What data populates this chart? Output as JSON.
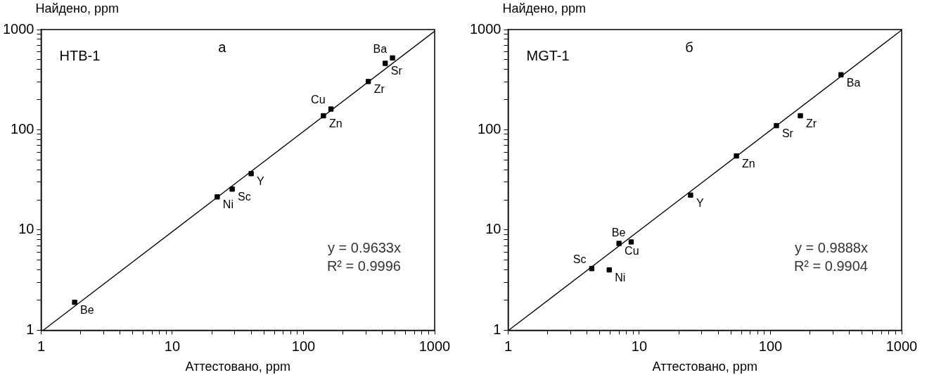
{
  "chart_data": [
    {
      "type": "scatter",
      "title": "а",
      "subtitle": "HTB-1",
      "xlabel": "Аттестовано, ppm",
      "ylabel": "Найдено, ppm",
      "log": "xy",
      "grid": false,
      "legend": false,
      "xlim": [
        1,
        1000
      ],
      "ylim": [
        1,
        1000
      ],
      "xticks": [
        1,
        {
          "value": 2,
          "label": null
        },
        {
          "value": 3,
          "label": null
        },
        {
          "value": 4,
          "label": null
        },
        {
          "value": 5,
          "label": null
        },
        {
          "value": 6,
          "label": null
        },
        {
          "value": 7,
          "label": null
        },
        {
          "value": 8,
          "label": null
        },
        {
          "value": 9,
          "label": null
        },
        10,
        {
          "value": 20,
          "label": null
        },
        {
          "value": 30,
          "label": null
        },
        {
          "value": 40,
          "label": null
        },
        {
          "value": 50,
          "label": null
        },
        {
          "value": 60,
          "label": null
        },
        {
          "value": 70,
          "label": null
        },
        {
          "value": 80,
          "label": null
        },
        {
          "value": 90,
          "label": null
        },
        100,
        {
          "value": 200,
          "label": null
        },
        {
          "value": 300,
          "label": null
        },
        {
          "value": 400,
          "label": null
        },
        {
          "value": 500,
          "label": null
        },
        {
          "value": 600,
          "label": null
        },
        {
          "value": 700,
          "label": null
        },
        {
          "value": 800,
          "label": null
        },
        {
          "value": 900,
          "label": null
        },
        1000
      ],
      "yticks": [
        1,
        {
          "value": 2,
          "label": null
        },
        {
          "value": 3,
          "label": null
        },
        {
          "value": 4,
          "label": null
        },
        {
          "value": 5,
          "label": null
        },
        {
          "value": 6,
          "label": null
        },
        {
          "value": 7,
          "label": null
        },
        {
          "value": 8,
          "label": null
        },
        {
          "value": 9,
          "label": null
        },
        10,
        {
          "value": 20,
          "label": null
        },
        {
          "value": 30,
          "label": null
        },
        {
          "value": 40,
          "label": null
        },
        {
          "value": 50,
          "label": null
        },
        {
          "value": 60,
          "label": null
        },
        {
          "value": 70,
          "label": null
        },
        {
          "value": 80,
          "label": null
        },
        {
          "value": 90,
          "label": null
        },
        100,
        {
          "value": 200,
          "label": null
        },
        {
          "value": 300,
          "label": null
        },
        {
          "value": 400,
          "label": null
        },
        {
          "value": 500,
          "label": null
        },
        {
          "value": 600,
          "label": null
        },
        {
          "value": 700,
          "label": null
        },
        {
          "value": 800,
          "label": null
        },
        {
          "value": 900,
          "label": null
        },
        1000
      ],
      "series": [
        {
          "color": "#000000",
          "marker": "square",
          "x": [
            1.8,
            22,
            28.6,
            39.9,
            142,
            162,
            312,
            420,
            477
          ],
          "values": [
            1.9,
            21.4,
            25.6,
            36.5,
            138,
            161,
            303,
            460,
            521
          ]
        },
        {
          "type": "line",
          "color": "#000000",
          "marker": "none",
          "line_style": "solid",
          "x": [
            1.04,
            1000
          ],
          "values": [
            1.002,
            963.3
          ]
        }
      ],
      "annotations": [
        {
          "text": "Be",
          "x": 1.8,
          "y": 1.9
        },
        {
          "text": "Ni",
          "x": 22,
          "y": 21.4
        },
        {
          "text": "Sc",
          "x": 28.6,
          "y": 25.6
        },
        {
          "text": "Y",
          "x": 39.9,
          "y": 36.5
        },
        {
          "text": "Zn",
          "x": 142,
          "y": 138
        },
        {
          "text": "Cu",
          "x": 162,
          "y": 161
        },
        {
          "text": "Zr",
          "x": 312,
          "y": 303
        },
        {
          "text": "Sr",
          "x": 420,
          "y": 460
        },
        {
          "text": "Ba",
          "x": 477,
          "y": 521
        },
        "y = 0.9633x",
        "R² = 0.9996"
      ]
    },
    {
      "type": "scatter",
      "title": "б",
      "subtitle": "MGT-1",
      "xlabel": "Аттестовано, ppm",
      "ylabel": "Найдено, ppm",
      "log": "xy",
      "grid": false,
      "legend": false,
      "xlim": [
        1,
        1000
      ],
      "ylim": [
        1,
        1000
      ],
      "xticks": [
        1,
        {
          "value": 2,
          "label": null
        },
        {
          "value": 3,
          "label": null
        },
        {
          "value": 4,
          "label": null
        },
        {
          "value": 5,
          "label": null
        },
        {
          "value": 6,
          "label": null
        },
        {
          "value": 7,
          "label": null
        },
        {
          "value": 8,
          "label": null
        },
        {
          "value": 9,
          "label": null
        },
        10,
        {
          "value": 20,
          "label": null
        },
        {
          "value": 30,
          "label": null
        },
        {
          "value": 40,
          "label": null
        },
        {
          "value": 50,
          "label": null
        },
        {
          "value": 60,
          "label": null
        },
        {
          "value": 70,
          "label": null
        },
        {
          "value": 80,
          "label": null
        },
        {
          "value": 90,
          "label": null
        },
        100,
        {
          "value": 200,
          "label": null
        },
        {
          "value": 300,
          "label": null
        },
        {
          "value": 400,
          "label": null
        },
        {
          "value": 500,
          "label": null
        },
        {
          "value": 600,
          "label": null
        },
        {
          "value": 700,
          "label": null
        },
        {
          "value": 800,
          "label": null
        },
        {
          "value": 900,
          "label": null
        },
        1000
      ],
      "yticks": [
        1,
        {
          "value": 2,
          "label": null
        },
        {
          "value": 3,
          "label": null
        },
        {
          "value": 4,
          "label": null
        },
        {
          "value": 5,
          "label": null
        },
        {
          "value": 6,
          "label": null
        },
        {
          "value": 7,
          "label": null
        },
        {
          "value": 8,
          "label": null
        },
        {
          "value": 9,
          "label": null
        },
        10,
        {
          "value": 20,
          "label": null
        },
        {
          "value": 30,
          "label": null
        },
        {
          "value": 40,
          "label": null
        },
        {
          "value": 50,
          "label": null
        },
        {
          "value": 60,
          "label": null
        },
        {
          "value": 70,
          "label": null
        },
        {
          "value": 80,
          "label": null
        },
        {
          "value": 90,
          "label": null
        },
        100,
        {
          "value": 200,
          "label": null
        },
        {
          "value": 300,
          "label": null
        },
        {
          "value": 400,
          "label": null
        },
        {
          "value": 500,
          "label": null
        },
        {
          "value": 600,
          "label": null
        },
        {
          "value": 700,
          "label": null
        },
        {
          "value": 800,
          "label": null
        },
        {
          "value": 900,
          "label": null
        },
        1000
      ],
      "series": [
        {
          "color": "#000000",
          "marker": "square",
          "x": [
            4.34,
            5.9,
            7,
            8.67,
            24.6,
            55,
            111,
            169,
            345
          ],
          "values": [
            4.12,
            4.0,
            7.35,
            7.6,
            22.3,
            54.8,
            110,
            138,
            354
          ]
        },
        {
          "type": "line",
          "color": "#000000",
          "marker": "none",
          "line_style": "solid",
          "x": [
            1.02,
            1000
          ],
          "values": [
            1.009,
            988.8
          ]
        }
      ],
      "annotations": [
        {
          "text": "Sc",
          "x": 4.34,
          "y": 4.12
        },
        {
          "text": "Ni",
          "x": 5.9,
          "y": 4.0
        },
        {
          "text": "Cu",
          "x": 7,
          "y": 7.35
        },
        {
          "text": "Be",
          "x": 8.67,
          "y": 7.6
        },
        {
          "text": "Y",
          "x": 24.6,
          "y": 22.3
        },
        {
          "text": "Zn",
          "x": 55,
          "y": 54.8
        },
        {
          "text": "Sr",
          "x": 111,
          "y": 110
        },
        {
          "text": "Zr",
          "x": 169,
          "y": 138
        },
        {
          "text": "Ba",
          "x": 345,
          "y": 354
        },
        "y = 0.9888x",
        "R² = 0.9904"
      ]
    }
  ]
}
